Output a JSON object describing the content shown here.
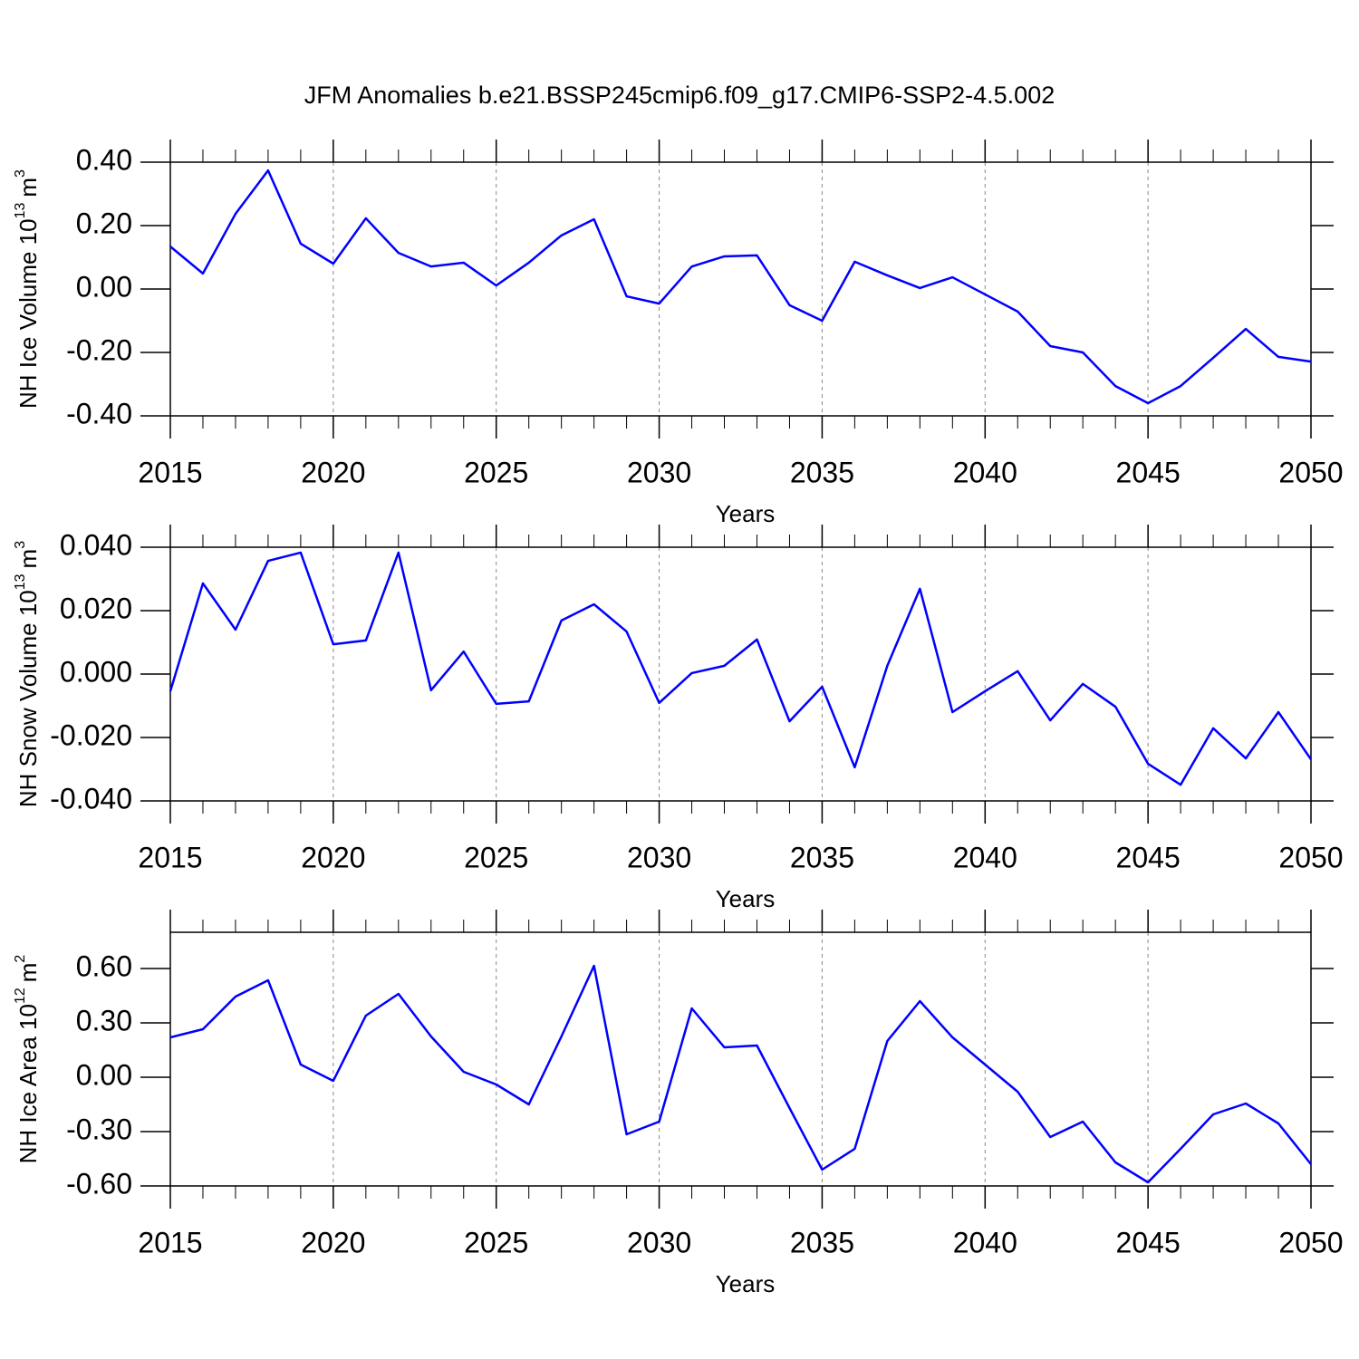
{
  "title": "JFM Anomalies b.e21.BSSP245cmip6.f09_g17.CMIP6-SSP2-4.5.002",
  "chart_data": [
    {
      "type": "line",
      "xlabel": "Years",
      "ylabel": {
        "text": "NH Ice Volume 10",
        "exponent": "13",
        "unit": "m",
        "unit_exponent": "3"
      },
      "x": [
        2015,
        2016,
        2017,
        2018,
        2019,
        2020,
        2021,
        2022,
        2023,
        2024,
        2025,
        2026,
        2027,
        2028,
        2029,
        2030,
        2031,
        2032,
        2033,
        2034,
        2035,
        2036,
        2037,
        2038,
        2039,
        2040,
        2041,
        2042,
        2043,
        2044,
        2045,
        2046,
        2047,
        2048,
        2049,
        2050
      ],
      "series": [
        {
          "color": "#0000ff",
          "values": [
            0.134,
            0.049,
            0.237,
            0.374,
            0.143,
            0.08,
            0.223,
            0.114,
            0.071,
            0.083,
            0.011,
            0.083,
            0.169,
            0.22,
            -0.023,
            -0.046,
            0.071,
            0.103,
            0.106,
            -0.051,
            -0.1,
            0.086,
            0.043,
            0.003,
            0.037,
            -0.017,
            -0.071,
            -0.18,
            -0.2,
            -0.306,
            -0.36,
            -0.306,
            -0.217,
            -0.126,
            -0.214,
            -0.229
          ]
        }
      ],
      "xlim": [
        2015,
        2050
      ],
      "xticks": [
        2015,
        2020,
        2025,
        2030,
        2035,
        2040,
        2045,
        2050
      ],
      "ylim": [
        -0.4,
        0.4
      ],
      "yticks": [
        {
          "value": -0.4,
          "label": "-0.40"
        },
        {
          "value": -0.2,
          "label": "-0.20"
        },
        {
          "value": 0,
          "label": "0.00"
        },
        {
          "value": 0.2,
          "label": "0.20"
        },
        {
          "value": 0.4,
          "label": "0.40"
        }
      ],
      "grid": "x"
    },
    {
      "type": "line",
      "xlabel": "Years",
      "ylabel": {
        "text": "NH Snow Volume 10",
        "exponent": "13",
        "unit": "m",
        "unit_exponent": "3"
      },
      "x": [
        2015,
        2016,
        2017,
        2018,
        2019,
        2020,
        2021,
        2022,
        2023,
        2024,
        2025,
        2026,
        2027,
        2028,
        2029,
        2030,
        2031,
        2032,
        2033,
        2034,
        2035,
        2036,
        2037,
        2038,
        2039,
        2040,
        2041,
        2042,
        2043,
        2044,
        2045,
        2046,
        2047,
        2048,
        2049,
        2050
      ],
      "series": [
        {
          "color": "#0000ff",
          "values": [
            -0.0054,
            0.0286,
            0.014,
            0.0357,
            0.0383,
            0.0094,
            0.0106,
            0.0383,
            -0.0051,
            0.0071,
            -0.0094,
            -0.0086,
            0.0169,
            0.022,
            0.0134,
            -0.0091,
            0.0003,
            0.0026,
            0.0109,
            -0.0149,
            -0.004,
            -0.0294,
            0.0026,
            0.0269,
            -0.012,
            -0.0054,
            0.0009,
            -0.0146,
            -0.0031,
            -0.0103,
            -0.0283,
            -0.0349,
            -0.0171,
            -0.0266,
            -0.012,
            -0.0269
          ]
        }
      ],
      "xlim": [
        2015,
        2050
      ],
      "xticks": [
        2015,
        2020,
        2025,
        2030,
        2035,
        2040,
        2045,
        2050
      ],
      "ylim": [
        -0.04,
        0.04
      ],
      "yticks": [
        {
          "value": -0.04,
          "label": "-0.040"
        },
        {
          "value": -0.02,
          "label": "-0.020"
        },
        {
          "value": 0,
          "label": "0.000"
        },
        {
          "value": 0.02,
          "label": "0.020"
        },
        {
          "value": 0.04,
          "label": "0.040"
        }
      ],
      "grid": "x"
    },
    {
      "type": "line",
      "xlabel": "Years",
      "ylabel": {
        "text": "NH Ice Area 10",
        "exponent": "12",
        "unit": "m",
        "unit_exponent": "2"
      },
      "x": [
        2015,
        2016,
        2017,
        2018,
        2019,
        2020,
        2021,
        2022,
        2023,
        2024,
        2025,
        2026,
        2027,
        2028,
        2029,
        2030,
        2031,
        2032,
        2033,
        2034,
        2035,
        2036,
        2037,
        2038,
        2039,
        2040,
        2041,
        2042,
        2043,
        2044,
        2045,
        2046,
        2047,
        2048,
        2049,
        2050
      ],
      "series": [
        {
          "color": "#0000ff",
          "values": [
            0.22,
            0.265,
            0.445,
            0.535,
            0.07,
            -0.02,
            0.34,
            0.46,
            0.225,
            0.03,
            -0.04,
            -0.15,
            0.225,
            0.615,
            -0.315,
            -0.245,
            0.38,
            0.165,
            0.175,
            -0.17,
            -0.51,
            -0.395,
            0.2,
            0.42,
            0.22,
            0.07,
            -0.08,
            -0.33,
            -0.245,
            -0.47,
            -0.58,
            -0.395,
            -0.205,
            -0.145,
            -0.255,
            -0.48
          ]
        }
      ],
      "xlim": [
        2015,
        2050
      ],
      "xticks": [
        2015,
        2020,
        2025,
        2030,
        2035,
        2040,
        2045,
        2050
      ],
      "ylim": [
        -0.6,
        0.8
      ],
      "yticks": [
        {
          "value": -0.6,
          "label": "-0.60"
        },
        {
          "value": -0.3,
          "label": "-0.30"
        },
        {
          "value": 0,
          "label": "0.00"
        },
        {
          "value": 0.3,
          "label": "0.30"
        },
        {
          "value": 0.6,
          "label": "0.60"
        }
      ],
      "grid": "x"
    }
  ]
}
